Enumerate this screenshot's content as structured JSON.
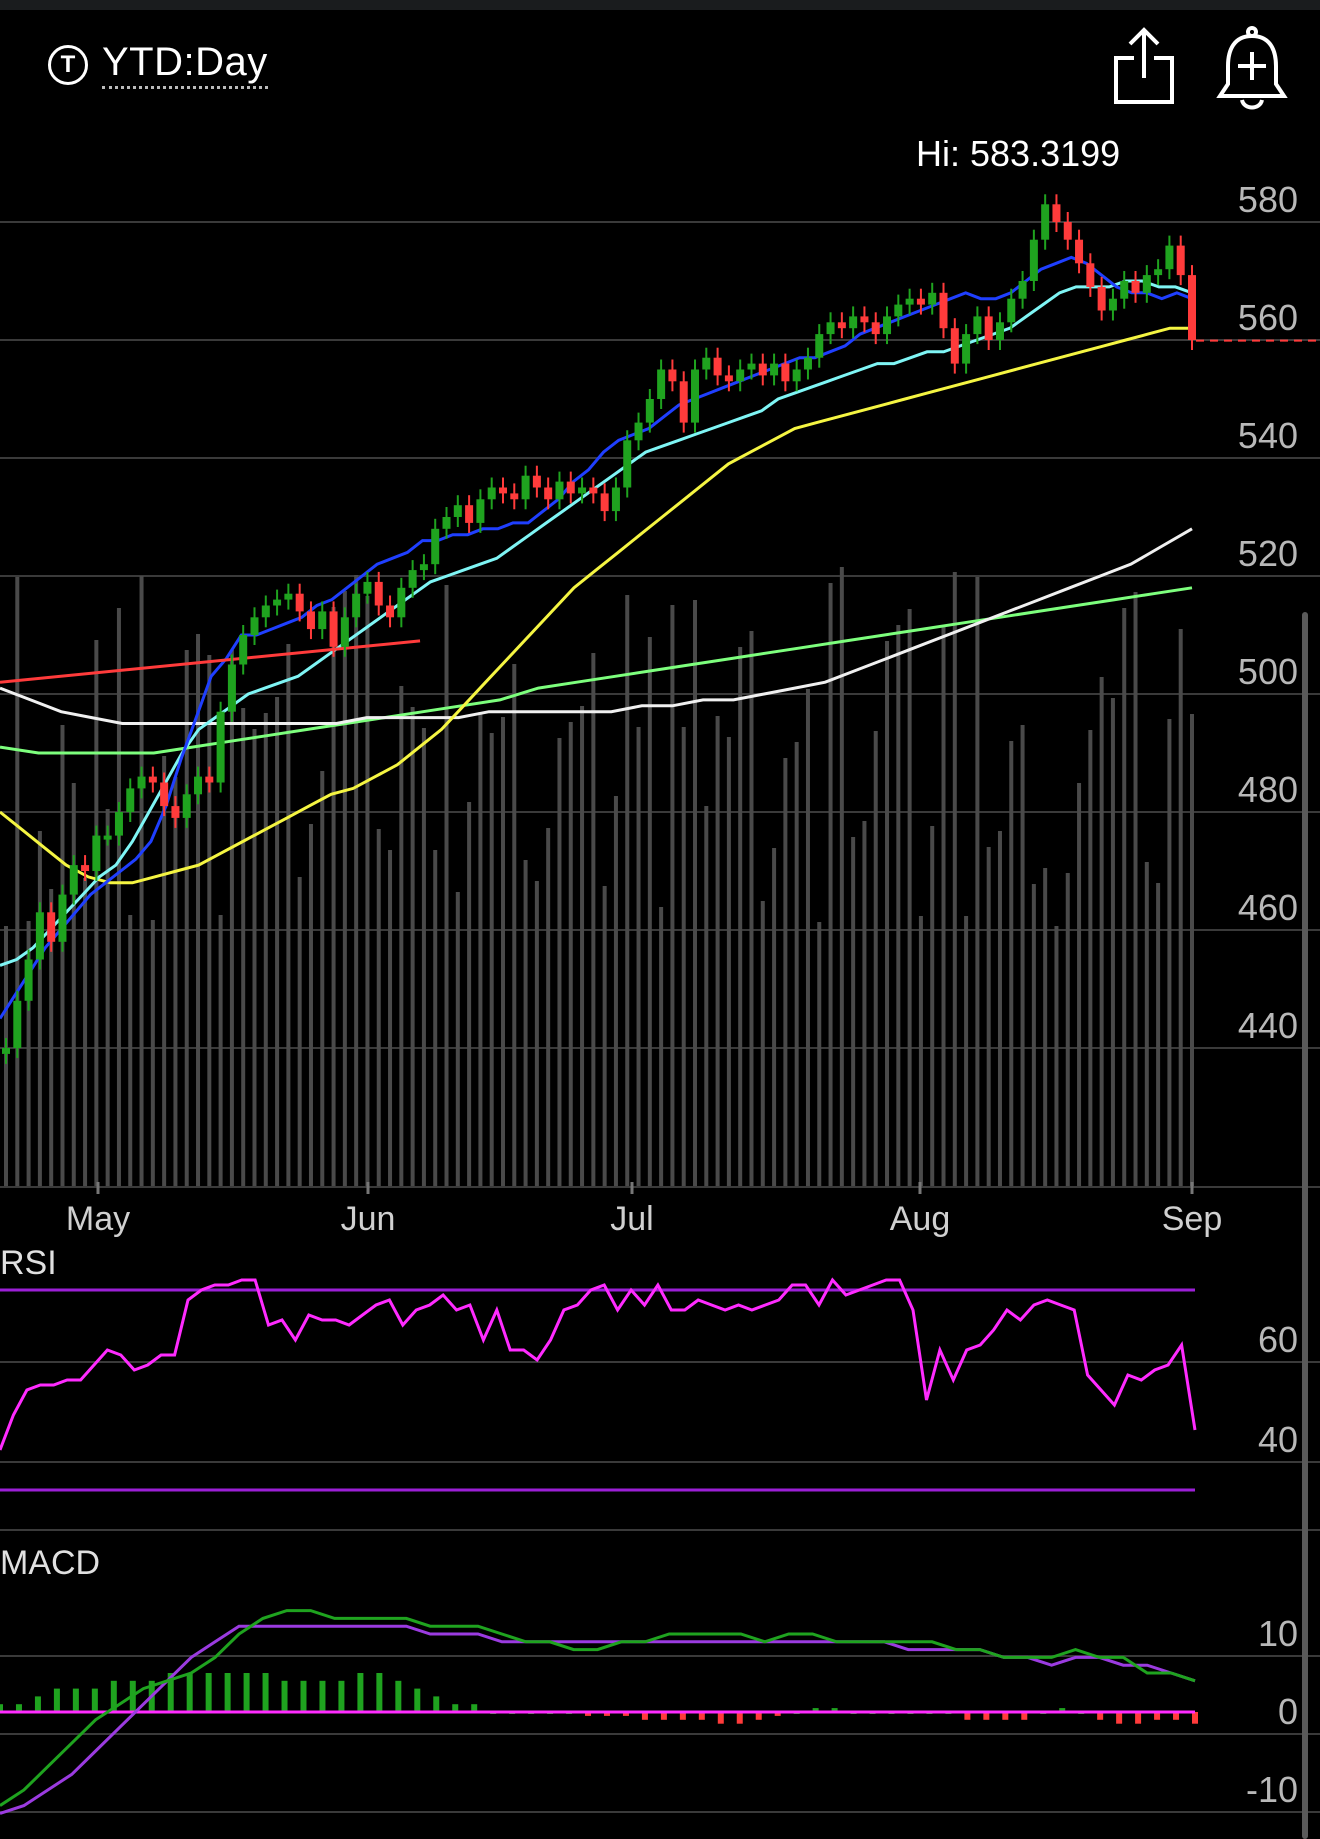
{
  "header": {
    "timeframe_label": "YTD:Day",
    "timeframe_icon": "T"
  },
  "colors": {
    "background": "#000000",
    "up_candle": "#1fa31f",
    "down_candle": "#ff3b3b",
    "ma_blue": "#1f3fff",
    "ma_cyan": "#7ff5f5",
    "ma_yellow": "#f5f542",
    "ma_white": "#f0f0f0",
    "ma_green": "#7dff7d",
    "trend_red": "#ff3b3b",
    "rsi_line": "#ff2bff",
    "rsi_bands": "#9b1fd6",
    "macd_line": "#1fa31f",
    "macd_signal": "#9b3be0",
    "volume": "#4a4a4a"
  },
  "chart_data": [
    {
      "type": "candlestick",
      "title": "",
      "hi_label": "Hi: 583.3199",
      "y_ticks": [
        440,
        460,
        480,
        500,
        520,
        540,
        560,
        580
      ],
      "ylim": [
        420,
        588
      ],
      "x_ticks": [
        "May",
        "Jun",
        "Jul",
        "Aug",
        "Sep"
      ],
      "last_price_line": 559.9,
      "candles_close": [
        440,
        448,
        455,
        463,
        458,
        466,
        471,
        470,
        476,
        476,
        480,
        484,
        486,
        485,
        481,
        479,
        483,
        486,
        485,
        497,
        505,
        510,
        513,
        515,
        516,
        517,
        514,
        511,
        514,
        508,
        513,
        517,
        519,
        515,
        513,
        518,
        521,
        522,
        528,
        530,
        532,
        529,
        533,
        535,
        534,
        533,
        537,
        535,
        533,
        536,
        534,
        535,
        534,
        531,
        535,
        543,
        546,
        550,
        555,
        553,
        546,
        555,
        557,
        554,
        553,
        555,
        556,
        554,
        556,
        553,
        555,
        557,
        561,
        563,
        562,
        564,
        563,
        561,
        564,
        566,
        567,
        566,
        568,
        562,
        556,
        561,
        564,
        560,
        563,
        567,
        570,
        577,
        583,
        580,
        577,
        573,
        569,
        565,
        567,
        570,
        568,
        571,
        572,
        576,
        571,
        560
      ],
      "moving_averages": {
        "ma_blue": [
          445,
          449,
          453,
          457,
          460,
          463,
          466,
          468,
          470,
          472,
          475,
          481,
          489,
          496,
          503,
          506,
          510,
          510,
          511,
          512,
          513,
          515,
          516,
          518,
          520,
          522,
          523,
          524,
          526,
          526,
          527,
          527,
          528,
          528,
          529,
          529,
          531,
          533,
          536,
          538,
          541,
          543,
          544,
          545,
          547,
          549,
          550,
          551,
          552,
          553,
          554,
          555,
          556,
          557,
          557,
          558,
          559,
          561,
          562,
          563,
          564,
          565,
          566,
          567,
          568,
          567,
          567,
          568,
          570,
          572,
          573,
          574,
          573,
          571,
          569,
          568,
          568,
          567,
          568,
          567
        ],
        "ma_cyan": [
          454,
          455,
          457,
          460,
          463,
          466,
          469,
          471,
          475,
          480,
          485,
          490,
          494,
          496,
          498,
          500,
          501,
          502,
          503,
          505,
          507,
          509,
          511,
          513,
          515,
          517,
          519,
          520,
          521,
          522,
          523,
          525,
          527,
          529,
          531,
          533,
          535,
          537,
          539,
          541,
          542,
          543,
          544,
          545,
          546,
          547,
          548,
          550,
          551,
          552,
          553,
          554,
          555,
          556,
          556,
          557,
          558,
          558,
          559,
          560,
          561,
          562,
          564,
          566,
          568,
          569,
          569,
          569,
          570,
          570,
          569,
          569,
          568
        ],
        "ma_yellow": [
          480,
          477,
          474,
          471,
          469,
          468,
          468,
          469,
          470,
          471,
          473,
          475,
          477,
          479,
          481,
          483,
          484,
          486,
          488,
          491,
          494,
          498,
          502,
          506,
          510,
          514,
          518,
          521,
          524,
          527,
          530,
          533,
          536,
          539,
          541,
          543,
          545,
          546,
          547,
          548,
          549,
          550,
          551,
          552,
          553,
          554,
          555,
          556,
          557,
          558,
          559,
          560,
          561,
          562,
          562
        ],
        "ma_white": [
          501,
          499,
          497,
          496,
          495,
          495,
          495,
          495,
          495,
          495,
          495,
          495,
          496,
          496,
          496,
          496,
          497,
          497,
          497,
          497,
          497,
          498,
          498,
          499,
          499,
          500,
          501,
          502,
          504,
          506,
          508,
          510,
          512,
          514,
          516,
          518,
          520,
          522,
          525,
          528
        ],
        "ma_green": [
          491,
          490,
          490,
          490,
          490,
          491,
          492,
          493,
          494,
          495,
          496,
          497,
          498,
          499,
          501,
          502,
          503,
          504,
          505,
          506,
          507,
          508,
          509,
          510,
          511,
          512,
          513,
          514,
          515,
          516,
          517,
          518
        ]
      },
      "trend_line": [
        [
          0,
          502
        ],
        [
          37,
          509
        ]
      ]
    },
    {
      "type": "line",
      "title": "RSI",
      "y_ticks": [
        40,
        60
      ],
      "bands": [
        70,
        30
      ],
      "values": [
        38,
        45,
        50,
        51,
        51,
        52,
        52,
        55,
        58,
        57,
        54,
        55,
        57,
        57,
        68,
        70,
        71,
        71,
        72,
        72,
        63,
        64,
        60,
        65,
        64,
        64,
        63,
        65,
        67,
        68,
        63,
        66,
        67,
        69,
        66,
        67,
        60,
        66,
        58,
        58,
        56,
        60,
        66,
        67,
        70,
        71,
        66,
        70,
        67,
        71,
        66,
        66,
        68,
        67,
        66,
        67,
        66,
        67,
        68,
        71,
        71,
        67,
        72,
        69,
        70,
        71,
        72,
        72,
        66,
        48,
        58,
        52,
        58,
        59,
        62,
        66,
        64,
        67,
        68,
        67,
        66,
        53,
        50,
        47,
        53,
        52,
        54,
        55,
        59,
        42
      ]
    },
    {
      "type": "line",
      "title": "MACD",
      "y_ticks": [
        -10,
        0,
        10
      ],
      "macd": [
        -12,
        -10,
        -7,
        -4,
        -1,
        1,
        3,
        4,
        5,
        7,
        10,
        12,
        13,
        13,
        12,
        12,
        12,
        12,
        11,
        11,
        11,
        10,
        9,
        9,
        8,
        8,
        9,
        9,
        10,
        10,
        10,
        10,
        9,
        10,
        10,
        9,
        9,
        9,
        9,
        9,
        8,
        8,
        7,
        7,
        7,
        8,
        7,
        7,
        5,
        5,
        4
      ],
      "signal": [
        -13,
        -12,
        -10,
        -8,
        -5,
        -2,
        1,
        4,
        7,
        9,
        11,
        11,
        11,
        11,
        11,
        11,
        11,
        11,
        10,
        10,
        10,
        9,
        9,
        9,
        9,
        9,
        9,
        9,
        9,
        9,
        9,
        9,
        9,
        9,
        9,
        9,
        9,
        9,
        8,
        8,
        8,
        8,
        7,
        7,
        6,
        7,
        7,
        6,
        6,
        5,
        4
      ],
      "histogram": [
        1,
        1,
        2,
        3,
        3,
        3,
        4,
        4,
        4,
        5,
        5,
        5,
        5,
        5,
        5,
        4,
        4,
        4,
        4,
        5,
        5,
        4,
        3,
        2,
        1,
        1,
        0,
        0,
        0,
        0,
        0,
        -0.5,
        -0.5,
        -0.5,
        -1,
        -1,
        -1,
        -1,
        -1.5,
        -1.5,
        -1,
        -0.5,
        0,
        0.5,
        0.5,
        0,
        0,
        0,
        0,
        0,
        0,
        -1,
        -1,
        -1,
        -1,
        0,
        0.5,
        0,
        -1,
        -1.5,
        -1.5,
        -1,
        -1,
        -1.5
      ]
    }
  ]
}
